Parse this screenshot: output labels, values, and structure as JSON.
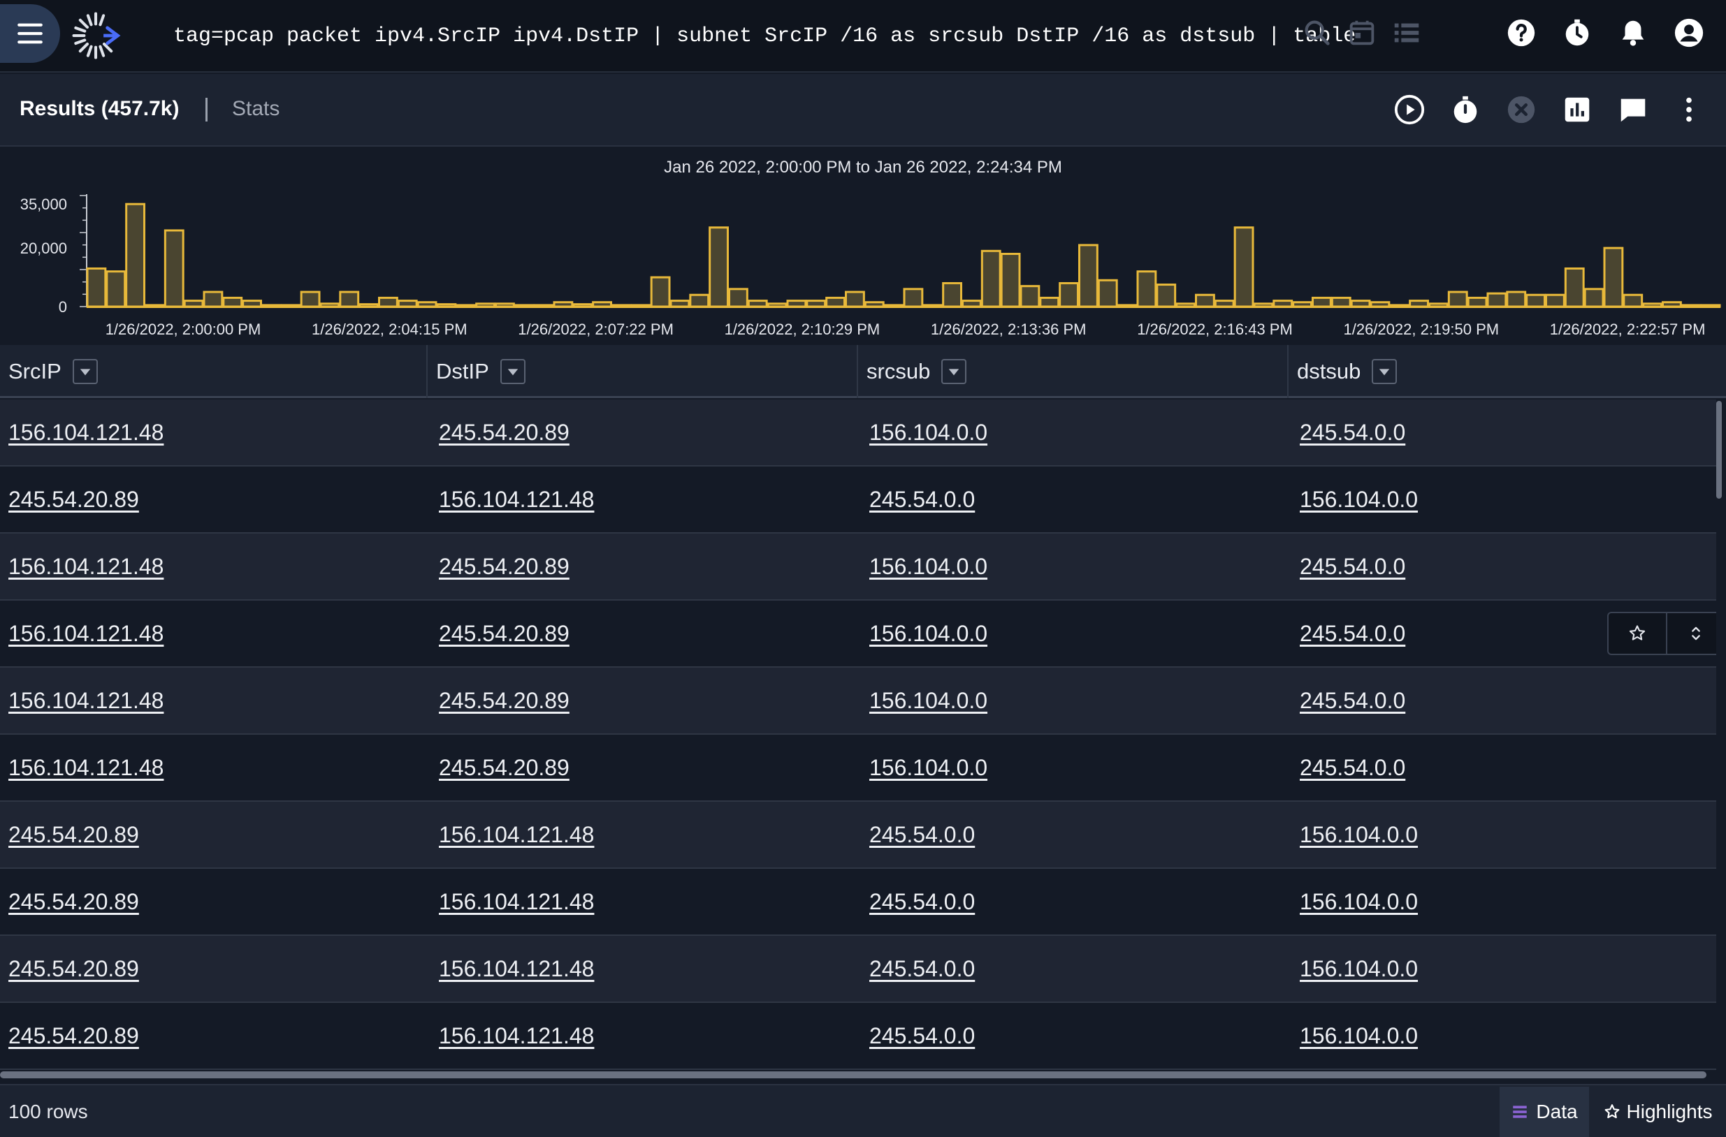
{
  "topbar": {
    "query": "tag=pcap packet ipv4.SrcIP ipv4.DstIP | subnet SrcIP /16 as srcsub DstIP /16 as dstsub | table",
    "icons": [
      "menu-icon",
      "logo-icon",
      "search-icon",
      "calendar-icon",
      "list-icon",
      "help-icon",
      "history-icon",
      "bell-icon",
      "account-icon"
    ]
  },
  "results": {
    "title": "Results (457.7k)",
    "stats_tab": "Stats",
    "actions": [
      "play-icon",
      "timer-icon",
      "cancel-icon",
      "chart-icon",
      "comment-icon",
      "more-icon"
    ]
  },
  "histogram": {
    "colors": {
      "fill": "#4a4530",
      "stroke": "#e8b93a",
      "axis": "#c9ccd3"
    },
    "chart_data": {
      "type": "bar",
      "title": "Jan 26 2022, 2:00:00 PM to Jan 26 2022, 2:24:34 PM",
      "y_ticks": [
        "35,000",
        "20,000",
        "0"
      ],
      "ylim": [
        0,
        36000
      ],
      "x_tick_labels": [
        "1/26/2022, 2:00:00 PM",
        "1/26/2022, 2:04:15 PM",
        "1/26/2022, 2:07:22 PM",
        "1/26/2022, 2:10:29 PM",
        "1/26/2022, 2:13:36 PM",
        "1/26/2022, 2:16:43 PM",
        "1/26/2022, 2:19:50 PM",
        "1/26/2022, 2:22:57 PM"
      ],
      "values": [
        13000,
        12000,
        35000,
        500,
        26000,
        2000,
        5000,
        3000,
        2000,
        500,
        500,
        5000,
        1000,
        5000,
        800,
        3000,
        2000,
        1500,
        800,
        500,
        1000,
        1000,
        500,
        500,
        1500,
        800,
        1500,
        500,
        500,
        10000,
        2000,
        4000,
        27000,
        6000,
        2000,
        1000,
        2000,
        2000,
        3000,
        5000,
        1500,
        500,
        6000,
        500,
        8000,
        2000,
        19000,
        18000,
        7000,
        3000,
        8000,
        21000,
        9000,
        500,
        12000,
        7500,
        1000,
        4000,
        2000,
        27000,
        1000,
        2000,
        1500,
        3000,
        3000,
        2000,
        1500,
        500,
        2000,
        1000,
        5000,
        3000,
        4500,
        5000,
        4000,
        4000,
        13000,
        6000,
        20000,
        4000,
        1000,
        1500,
        500,
        500
      ]
    }
  },
  "table": {
    "columns": [
      "SrcIP",
      "DstIP",
      "srcsub",
      "dstsub"
    ],
    "rows": [
      [
        "156.104.121.48",
        "245.54.20.89",
        "156.104.0.0",
        "245.54.0.0"
      ],
      [
        "245.54.20.89",
        "156.104.121.48",
        "245.54.0.0",
        "156.104.0.0"
      ],
      [
        "156.104.121.48",
        "245.54.20.89",
        "156.104.0.0",
        "245.54.0.0"
      ],
      [
        "156.104.121.48",
        "245.54.20.89",
        "156.104.0.0",
        "245.54.0.0"
      ],
      [
        "156.104.121.48",
        "245.54.20.89",
        "156.104.0.0",
        "245.54.0.0"
      ],
      [
        "156.104.121.48",
        "245.54.20.89",
        "156.104.0.0",
        "245.54.0.0"
      ],
      [
        "245.54.20.89",
        "156.104.121.48",
        "245.54.0.0",
        "156.104.0.0"
      ],
      [
        "245.54.20.89",
        "156.104.121.48",
        "245.54.0.0",
        "156.104.0.0"
      ],
      [
        "245.54.20.89",
        "156.104.121.48",
        "245.54.0.0",
        "156.104.0.0"
      ],
      [
        "245.54.20.89",
        "156.104.121.48",
        "245.54.0.0",
        "156.104.0.0"
      ]
    ],
    "row_actions": [
      "star-icon",
      "expand-icon"
    ]
  },
  "footer": {
    "row_count": "100 rows",
    "data_tab": "Data",
    "highlights_tab": "Highlights"
  },
  "colors": {
    "accent": "#8a63d2",
    "background": "#141a26"
  }
}
